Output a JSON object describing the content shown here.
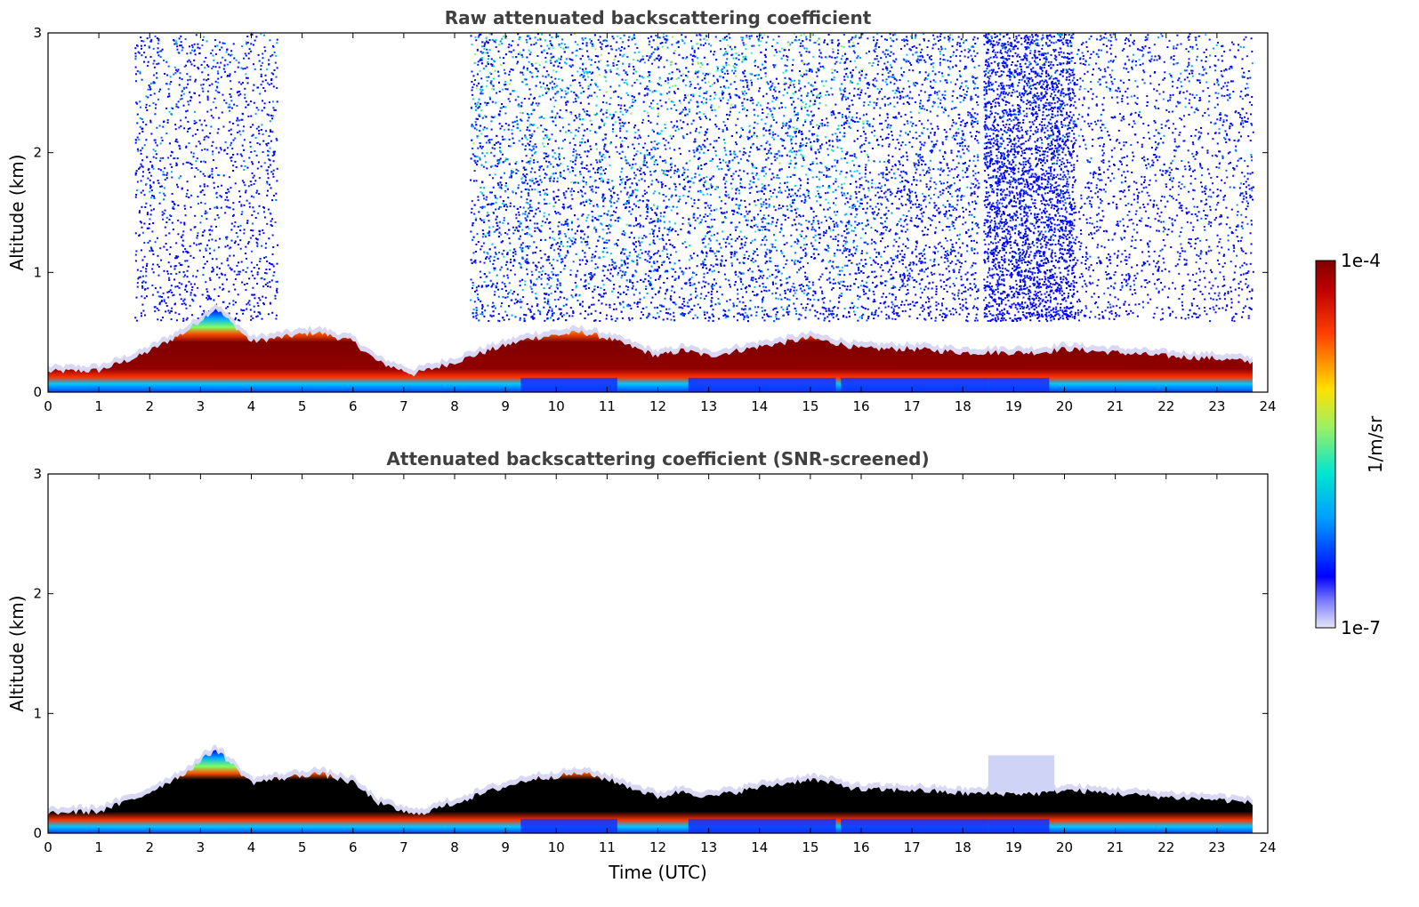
{
  "chart_data": [
    {
      "type": "heatmap",
      "title": "Raw attenuated backscattering coefficient",
      "xlabel": "",
      "ylabel": "Altitude (km)",
      "xlim": [
        0,
        24
      ],
      "ylim": [
        0,
        3
      ],
      "xticks": [
        "0",
        "1",
        "2",
        "3",
        "4",
        "5",
        "6",
        "7",
        "8",
        "9",
        "10",
        "11",
        "12",
        "13",
        "14",
        "15",
        "16",
        "17",
        "18",
        "19",
        "20",
        "21",
        "22",
        "23",
        "24"
      ],
      "yticks": [
        "0",
        "1",
        "2",
        "3"
      ],
      "boundary_layer_top_km": {
        "time_utc": [
          0,
          1,
          1.8,
          2.7,
          3.3,
          4,
          5.3,
          6,
          6.5,
          7.2,
          8,
          8.7,
          9.5,
          10.5,
          11,
          12,
          12.5,
          13,
          14,
          15,
          15.6,
          16,
          17,
          18,
          18.5,
          19.5,
          20,
          21,
          22,
          23,
          23.7
        ],
        "top_km": [
          0.17,
          0.18,
          0.3,
          0.5,
          0.7,
          0.42,
          0.5,
          0.42,
          0.25,
          0.15,
          0.25,
          0.35,
          0.45,
          0.5,
          0.45,
          0.3,
          0.35,
          0.3,
          0.38,
          0.45,
          0.4,
          0.36,
          0.36,
          0.33,
          0.33,
          0.33,
          0.36,
          0.33,
          0.3,
          0.28,
          0.25
        ]
      },
      "noise_region": "scattered signal up to 3 km, densest 8.5–16 and 18.5–20 UTC",
      "data_extent_utc": [
        0,
        23.7
      ]
    },
    {
      "type": "heatmap",
      "title": "Attenuated backscattering coefficient (SNR-screened)",
      "xlabel": "Time (UTC)",
      "ylabel": "Altitude (km)",
      "xlim": [
        0,
        24
      ],
      "ylim": [
        0,
        3
      ],
      "xticks": [
        "0",
        "1",
        "2",
        "3",
        "4",
        "5",
        "6",
        "7",
        "8",
        "9",
        "10",
        "11",
        "12",
        "13",
        "14",
        "15",
        "16",
        "17",
        "18",
        "19",
        "20",
        "21",
        "22",
        "23",
        "24"
      ],
      "yticks": [
        "0",
        "1",
        "2",
        "3"
      ],
      "boundary_layer_top_km": {
        "time_utc": [
          0,
          1,
          1.8,
          2.7,
          3.3,
          4,
          5.3,
          6,
          6.5,
          7.2,
          8,
          8.7,
          9.5,
          10.5,
          11,
          12,
          12.5,
          13,
          14,
          15,
          15.6,
          16,
          17,
          18,
          18.5,
          19.5,
          20,
          21,
          22,
          23,
          23.7
        ],
        "top_km": [
          0.17,
          0.18,
          0.3,
          0.5,
          0.7,
          0.42,
          0.5,
          0.42,
          0.25,
          0.15,
          0.25,
          0.35,
          0.45,
          0.5,
          0.45,
          0.3,
          0.35,
          0.3,
          0.38,
          0.45,
          0.4,
          0.36,
          0.36,
          0.33,
          0.33,
          0.33,
          0.36,
          0.33,
          0.3,
          0.28,
          0.25
        ]
      },
      "data_extent_utc": [
        0,
        23.7
      ]
    }
  ],
  "colorbar": {
    "label": "1/m/sr",
    "max_label": "1e-4",
    "min_label": "1e-7",
    "scale": "log",
    "colormap": "jet",
    "colors": [
      "#e6e6f7",
      "#0000ff",
      "#00a0ff",
      "#00e5d0",
      "#ffe000",
      "#ff4000",
      "#800000"
    ]
  }
}
